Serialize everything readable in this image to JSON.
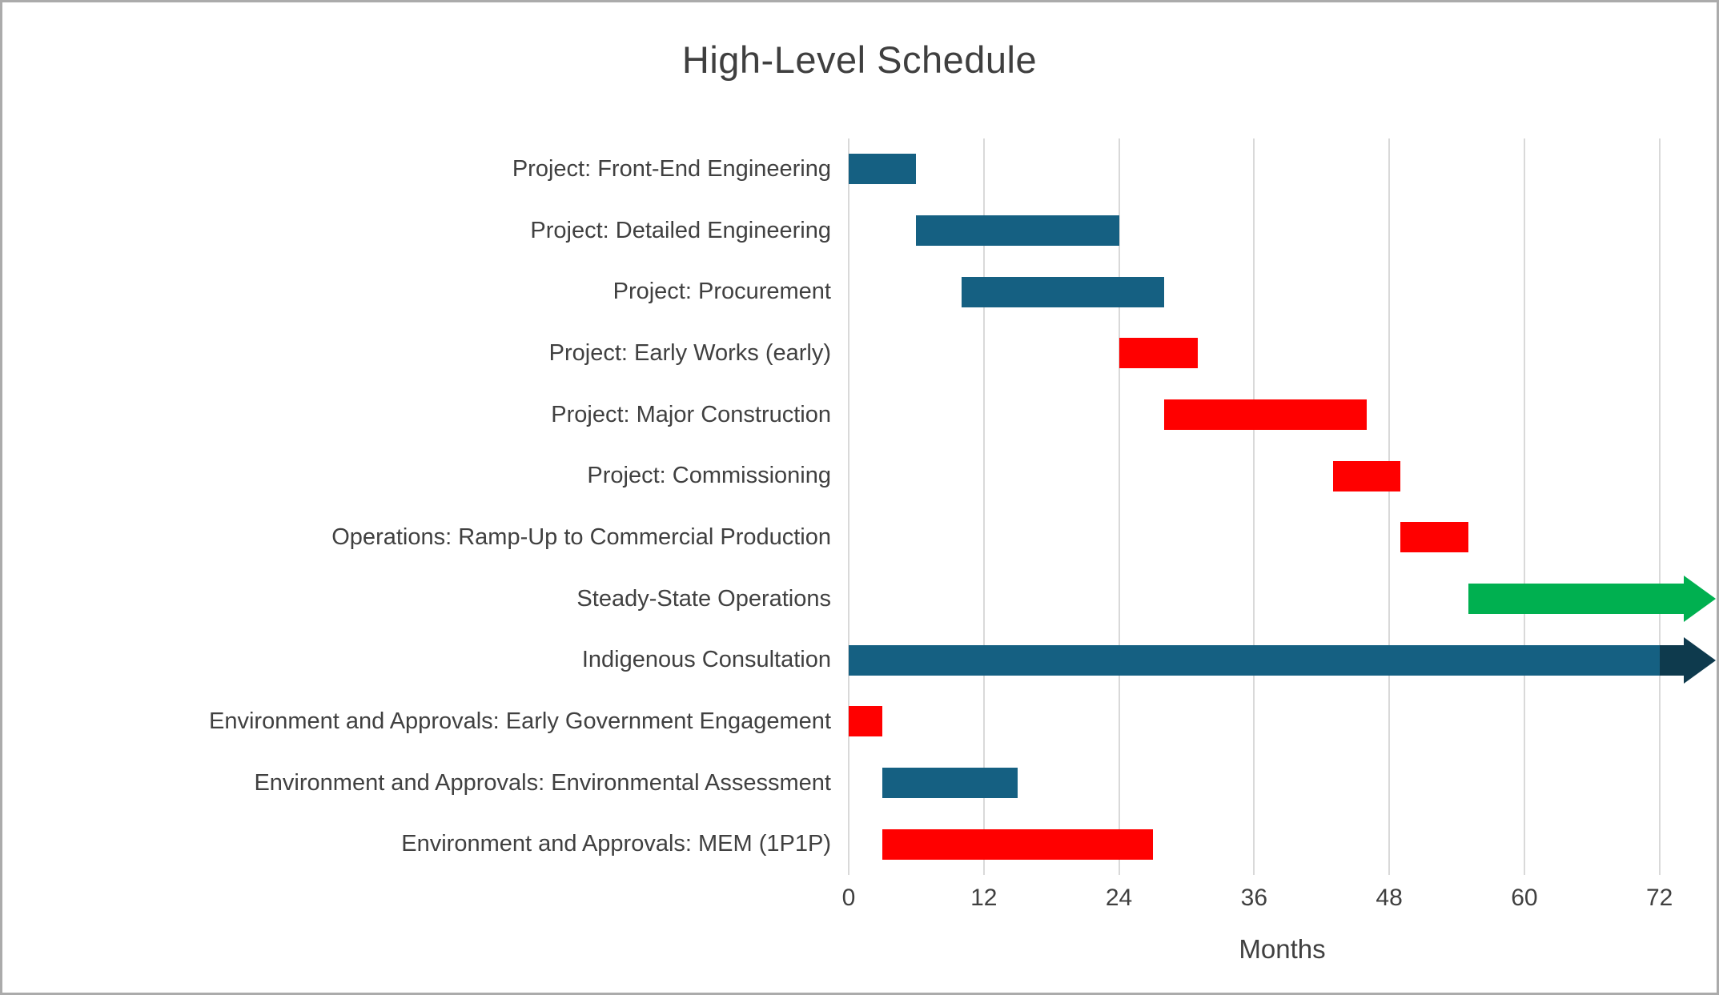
{
  "chart_data": {
    "type": "gantt",
    "title": "High-Level Schedule",
    "xlabel": "Months",
    "xlim": [
      0,
      77
    ],
    "x_ticks": [
      0,
      12,
      24,
      36,
      48,
      60,
      72
    ],
    "grid": "vertical-on",
    "legend": "none",
    "colors": {
      "teal": "#156082",
      "red": "#FF0000",
      "green": "#00B050",
      "dark": "#0E3A4D",
      "gridline": "#D9D9D9",
      "text": "#404040"
    },
    "tasks": [
      {
        "label": "Project: Front-End Engineering",
        "start": 0,
        "end": 6,
        "color": "teal"
      },
      {
        "label": "Project: Detailed Engineering",
        "start": 6,
        "end": 24,
        "color": "teal"
      },
      {
        "label": "Project: Procurement",
        "start": 10,
        "end": 28,
        "color": "teal"
      },
      {
        "label": "Project: Early Works (early)",
        "start": 24,
        "end": 31,
        "color": "red"
      },
      {
        "label": "Project: Major Construction",
        "start": 28,
        "end": 46,
        "color": "red"
      },
      {
        "label": "Project: Commissioning",
        "start": 43,
        "end": 49,
        "color": "red"
      },
      {
        "label": "Operations: Ramp-Up to Commercial Production",
        "start": 49,
        "end": 55,
        "color": "red"
      },
      {
        "label": "Steady-State Operations",
        "start": 55,
        "end": 74,
        "color": "green",
        "arrow": {
          "tip": 77,
          "color": "green"
        }
      },
      {
        "label": "Indigenous Consultation",
        "start": 0,
        "end": 72,
        "color": "teal",
        "arrow": {
          "tip": 77,
          "color": "dark"
        }
      },
      {
        "label": "Environment and Approvals: Early Government Engagement",
        "start": 0,
        "end": 3,
        "color": "red"
      },
      {
        "label": "Environment and Approvals: Environmental Assessment",
        "start": 3,
        "end": 15,
        "color": "teal"
      },
      {
        "label": "Environment and Approvals: MEM (1P1P)",
        "start": 3,
        "end": 27,
        "color": "red"
      }
    ]
  }
}
